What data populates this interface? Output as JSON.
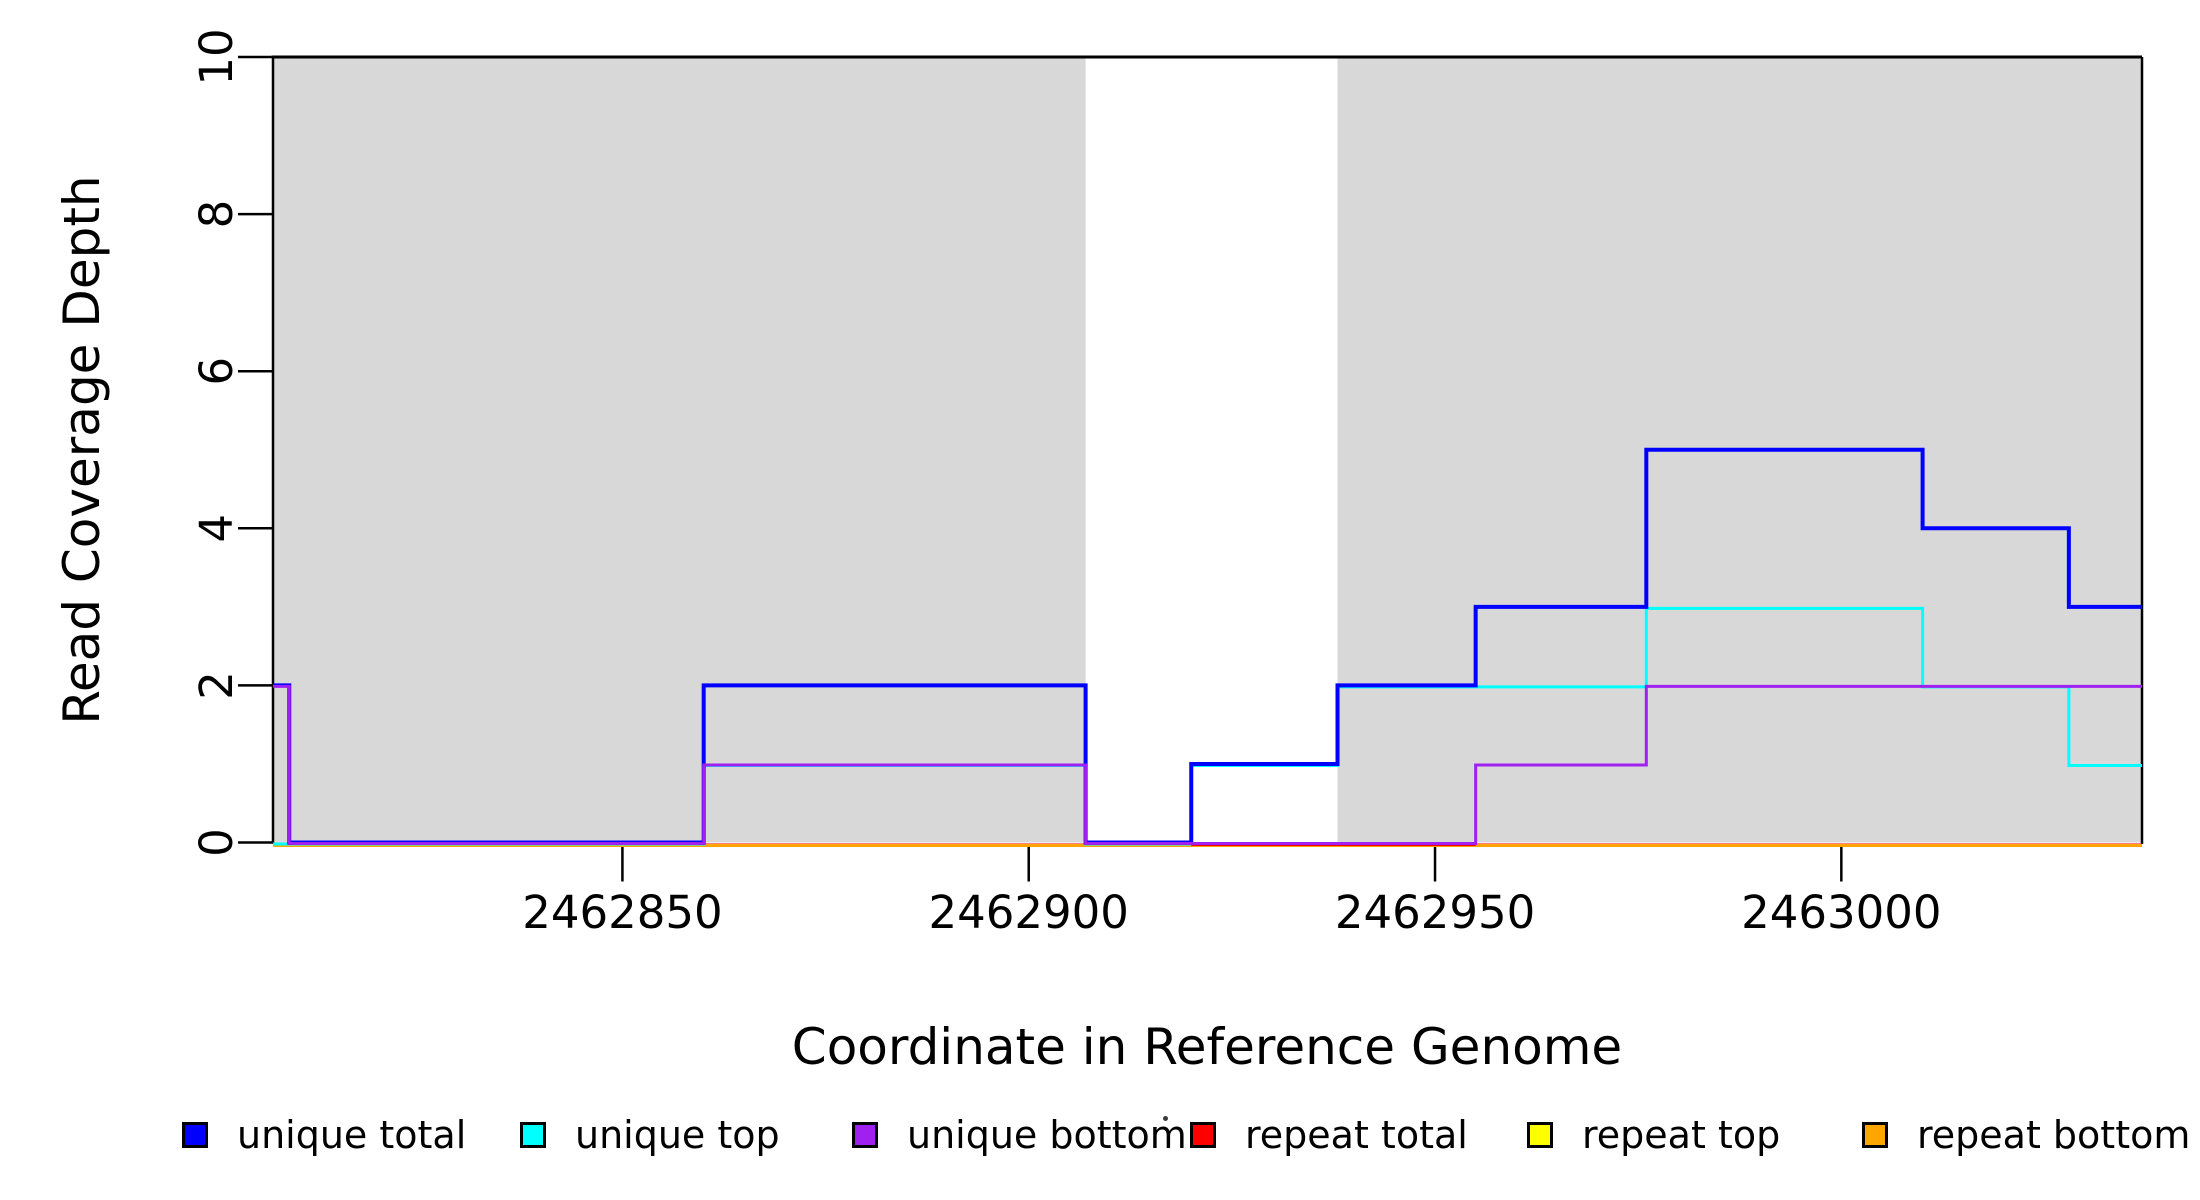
{
  "chart_data": {
    "type": "line",
    "subtype": "step-coverage",
    "title": "",
    "xlabel": "Coordinate in Reference Genome",
    "ylabel": "Read Coverage Depth",
    "x_domain": [
      2462807,
      2463037
    ],
    "y_domain": [
      0,
      10
    ],
    "grid": false,
    "x_ticks": {
      "values": [
        2462850,
        2462900,
        2462950,
        2463000
      ],
      "labels": [
        "2462850",
        "2462900",
        "2462950",
        "2463000"
      ]
    },
    "y_ticks": {
      "values": [
        0,
        2,
        4,
        6,
        8,
        10
      ],
      "labels": [
        "0",
        "2",
        "4",
        "6",
        "8",
        "10"
      ]
    },
    "shaded_regions": [
      {
        "x0": 2462807,
        "x1": 2462907,
        "color": "#d8d8d8",
        "meaning": "repeat region"
      },
      {
        "x0": 2462938,
        "x1": 2463037,
        "color": "#d8d8d8",
        "meaning": "repeat region"
      }
    ],
    "frame": {
      "top_border_color": "#000000",
      "right_border_color": "#000000",
      "axis_color": "#000000"
    },
    "series": [
      {
        "name": "unique total",
        "color": "#0000ff",
        "steps": [
          [
            2462807,
            2
          ],
          [
            2462809,
            0
          ],
          [
            2462860,
            2
          ],
          [
            2462907,
            0
          ],
          [
            2462920,
            1
          ],
          [
            2462938,
            2
          ],
          [
            2462955,
            3
          ],
          [
            2462976,
            5
          ],
          [
            2463010,
            4
          ],
          [
            2463028,
            3
          ]
        ]
      },
      {
        "name": "unique top",
        "color": "#00ffff",
        "steps": [
          [
            2462807,
            0
          ],
          [
            2462860,
            1
          ],
          [
            2462907,
            0
          ],
          [
            2462920,
            1
          ],
          [
            2462938,
            2
          ],
          [
            2462976,
            3
          ],
          [
            2463010,
            2
          ],
          [
            2463028,
            1
          ]
        ]
      },
      {
        "name": "unique bottom",
        "color": "#a020f0",
        "steps": [
          [
            2462807,
            2
          ],
          [
            2462809,
            0
          ],
          [
            2462860,
            1
          ],
          [
            2462907,
            0
          ],
          [
            2462955,
            1
          ],
          [
            2462976,
            2
          ]
        ]
      },
      {
        "name": "repeat total",
        "color": "#ff0000",
        "steps": [
          [
            2462807,
            0
          ]
        ]
      },
      {
        "name": "repeat top",
        "color": "#ffff00",
        "steps": [
          [
            2462807,
            0
          ]
        ]
      },
      {
        "name": "repeat bottom",
        "color": "#ffa500",
        "steps": [
          [
            2462807,
            0
          ]
        ]
      }
    ],
    "legend": {
      "position": "bottom",
      "items": [
        {
          "label": "unique total",
          "color": "#0000ff"
        },
        {
          "label": "unique top",
          "color": "#00ffff"
        },
        {
          "label": "unique bottom",
          "color": "#a020f0"
        },
        {
          "label": "repeat total",
          "color": "#ff0000"
        },
        {
          "label": "repeat top",
          "color": "#ffff00"
        },
        {
          "label": "repeat bottom",
          "color": "#ffa500"
        }
      ],
      "stray_dot": true
    }
  }
}
